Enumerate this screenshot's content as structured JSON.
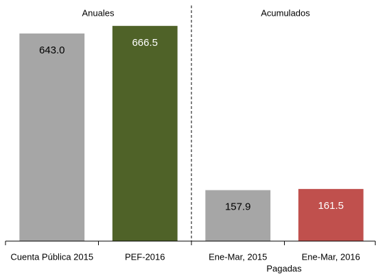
{
  "chart_data": {
    "type": "bar",
    "annotations": [
      "Anuales",
      "Acumulados",
      "Pagadas"
    ],
    "categories": [
      "Cuenta Pública 2015",
      "PEF-2016",
      "Ene-Mar, 2015",
      "Ene-Mar, 2016"
    ],
    "values": [
      643.0,
      666.5,
      157.9,
      161.5
    ],
    "value_labels": [
      "643.0",
      "666.5",
      "157.9",
      "161.5"
    ],
    "colors": [
      "#a6a6a6",
      "#4f6228",
      "#a6a6a6",
      "#c0504d"
    ],
    "label_colors": [
      "#000000",
      "#ffffff",
      "#000000",
      "#ffffff"
    ],
    "ylim": [
      0,
      700
    ]
  }
}
